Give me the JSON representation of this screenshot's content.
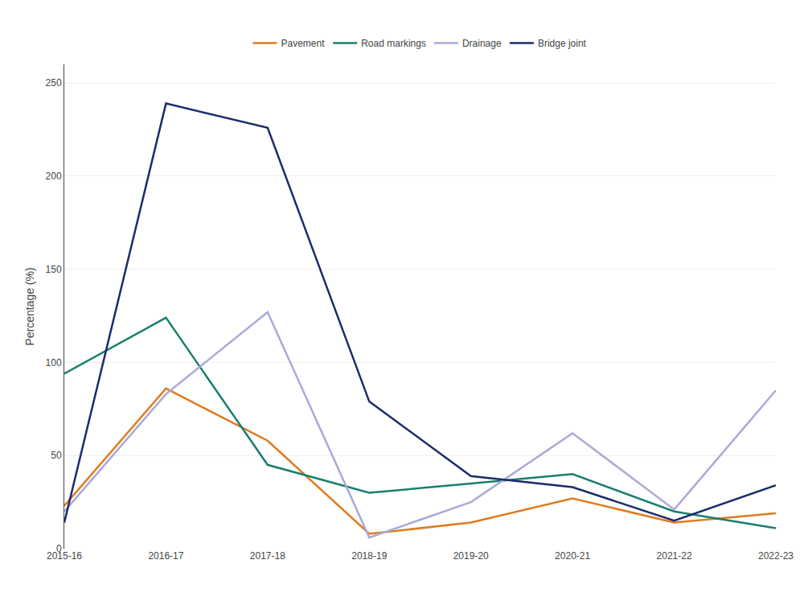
{
  "chart_data": {
    "type": "line",
    "categories": [
      "2015-16",
      "2016-17",
      "2017-18",
      "2018-19",
      "2019-20",
      "2020-21",
      "2021-22",
      "2022-23"
    ],
    "series": [
      {
        "name": "Pavement",
        "color": "#E07B20",
        "values": [
          23,
          86,
          58,
          8,
          14,
          27,
          14,
          19
        ]
      },
      {
        "name": "Road markings",
        "color": "#1A7F6E",
        "values": [
          94,
          124,
          45,
          30,
          35,
          40,
          20,
          11
        ]
      },
      {
        "name": "Drainage",
        "color": "#A9A9D8",
        "values": [
          20,
          83,
          127,
          6,
          25,
          62,
          21,
          85
        ]
      },
      {
        "name": "Bridge joint",
        "color": "#1C2B6B",
        "values": [
          14,
          239,
          226,
          79,
          39,
          33,
          15,
          34
        ]
      }
    ],
    "ylabel": "Percentage (%)",
    "ylim": [
      0,
      260
    ],
    "yticks": [
      0,
      50,
      100,
      150,
      200,
      250
    ],
    "grid": true,
    "legend": "top"
  }
}
